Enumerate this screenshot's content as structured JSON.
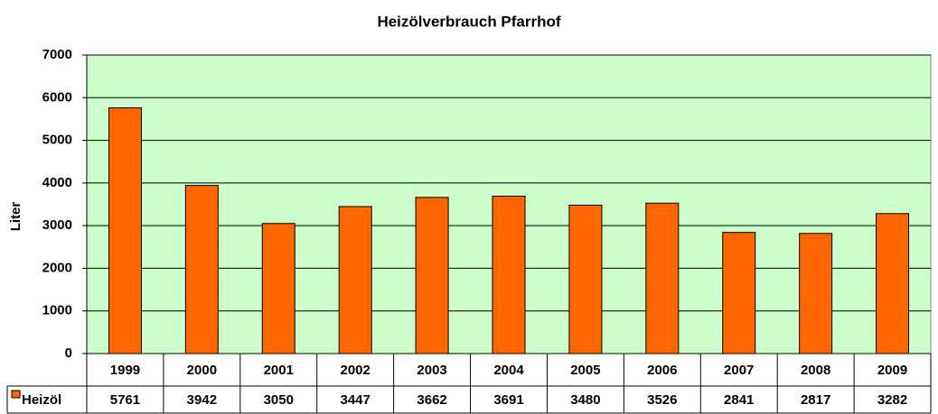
{
  "chart_data": {
    "type": "bar",
    "title": "Heizölverbrauch Pfarrhof",
    "ylabel": "Liter",
    "categories": [
      "1999",
      "2000",
      "2001",
      "2002",
      "2003",
      "2004",
      "2005",
      "2006",
      "2007",
      "2008",
      "2009"
    ],
    "series": [
      {
        "name": "Heizöl",
        "color": "#ff6600",
        "values": [
          5761,
          3942,
          3050,
          3447,
          3662,
          3691,
          3480,
          3526,
          2841,
          2817,
          3282
        ]
      }
    ],
    "ylim": [
      0,
      7000
    ],
    "yticks": [
      0,
      1000,
      2000,
      3000,
      4000,
      5000,
      6000,
      7000
    ],
    "grid": true
  }
}
